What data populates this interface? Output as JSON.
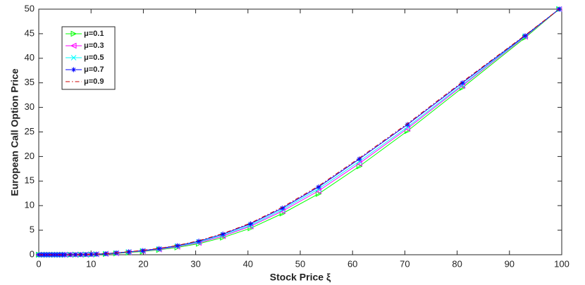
{
  "chart_data": {
    "type": "line",
    "xlabel": "Stock Price ξ",
    "ylabel": "European Call Option Price",
    "x": [
      0,
      0.5,
      1,
      1.5,
      2,
      2.5,
      3,
      3.5,
      4,
      4.5,
      5,
      6,
      7,
      8,
      9,
      10,
      11,
      12.8,
      14.8,
      17.2,
      19.9,
      23,
      26.5,
      30.6,
      35.2,
      40.5,
      46.6,
      53.5,
      61.3,
      70.5,
      81,
      93,
      99.5
    ],
    "series": [
      {
        "name": "μ=0.1",
        "color": "#00ff00",
        "marker": "triangle-right",
        "linestyle": "solid",
        "values": [
          0,
          0,
          0,
          0,
          0,
          0,
          0,
          0,
          0,
          0,
          0,
          0,
          0.01,
          0.02,
          0.03,
          0.05,
          0.08,
          0.15,
          0.27,
          0.45,
          0.66,
          1.0,
          1.5,
          2.25,
          3.5,
          5.4,
          8.4,
          12.4,
          18.0,
          25.2,
          34.0,
          44.2,
          50
        ]
      },
      {
        "name": "μ=0.3",
        "color": "#ff00ff",
        "marker": "triangle-left",
        "linestyle": "solid",
        "values": [
          0,
          0,
          0,
          0,
          0,
          0,
          0,
          0,
          0,
          0,
          0,
          0.01,
          0.01,
          0.02,
          0.04,
          0.06,
          0.1,
          0.18,
          0.32,
          0.52,
          0.75,
          1.1,
          1.65,
          2.45,
          3.8,
          5.8,
          8.9,
          13.0,
          18.6,
          25.7,
          34.4,
          44.4,
          50
        ]
      },
      {
        "name": "μ=0.5",
        "color": "#00ffff",
        "marker": "x",
        "linestyle": "solid",
        "values": [
          0,
          0,
          0,
          0,
          0,
          0,
          0,
          0,
          0,
          0,
          0,
          0.01,
          0.02,
          0.03,
          0.05,
          0.07,
          0.11,
          0.2,
          0.35,
          0.56,
          0.8,
          1.18,
          1.75,
          2.6,
          4.0,
          6.0,
          9.2,
          13.4,
          19.0,
          26.0,
          34.6,
          44.5,
          50
        ]
      },
      {
        "name": "μ=0.7",
        "color": "#0000ff",
        "marker": "star",
        "linestyle": "solid",
        "values": [
          0,
          0,
          0,
          0,
          0,
          0,
          0,
          0,
          0,
          0,
          0,
          0.01,
          0.02,
          0.03,
          0.05,
          0.08,
          0.12,
          0.22,
          0.38,
          0.6,
          0.85,
          1.25,
          1.85,
          2.75,
          4.2,
          6.3,
          9.5,
          13.8,
          19.5,
          26.5,
          35,
          44.6,
          50
        ]
      },
      {
        "name": "μ=0.9",
        "color": "#cc0000",
        "marker": "none",
        "linestyle": "dashdot",
        "values": [
          0,
          0,
          0,
          0,
          0,
          0,
          0,
          0,
          0,
          0,
          0,
          0.01,
          0.02,
          0.03,
          0.05,
          0.08,
          0.13,
          0.23,
          0.4,
          0.62,
          0.9,
          1.3,
          1.9,
          2.85,
          4.3,
          6.45,
          9.7,
          14.0,
          19.7,
          26.7,
          35.2,
          44.7,
          50
        ]
      }
    ],
    "xlim": [
      0,
      100
    ],
    "xticks": [
      0,
      10,
      20,
      30,
      40,
      50,
      60,
      70,
      80,
      90,
      100
    ],
    "ylim": [
      0,
      50
    ],
    "yticks": [
      0,
      5,
      10,
      15,
      20,
      25,
      30,
      35,
      40,
      45,
      50
    ],
    "legend": "upper left",
    "grid": false
  }
}
